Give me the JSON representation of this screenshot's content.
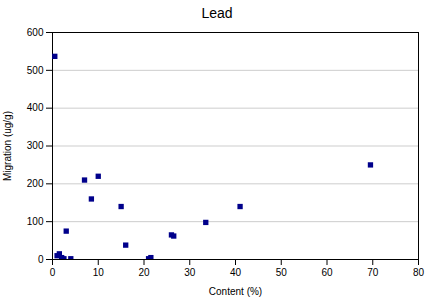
{
  "chart_data": {
    "type": "scatter",
    "title": "Lead",
    "xlabel": "Content (%)",
    "ylabel": "Migration (ug/g)",
    "x": [
      0.5,
      1.0,
      1.5,
      2.0,
      2.5,
      3.0,
      4.0,
      7.0,
      8.5,
      10.0,
      15.0,
      16.0,
      21.0,
      21.5,
      26.0,
      26.5,
      33.5,
      41.0,
      69.5
    ],
    "values": [
      537,
      10,
      15,
      5,
      2,
      75,
      2,
      210,
      160,
      220,
      140,
      38,
      2,
      5,
      65,
      62,
      98,
      140,
      250
    ],
    "xlim": [
      0,
      80
    ],
    "ylim": [
      0,
      600
    ],
    "xticks": [
      0,
      10,
      20,
      30,
      40,
      50,
      60,
      70,
      80
    ],
    "yticks": [
      0,
      100,
      200,
      300,
      400,
      500,
      600
    ],
    "color": "#00008B",
    "marker": "square",
    "grid": true
  }
}
